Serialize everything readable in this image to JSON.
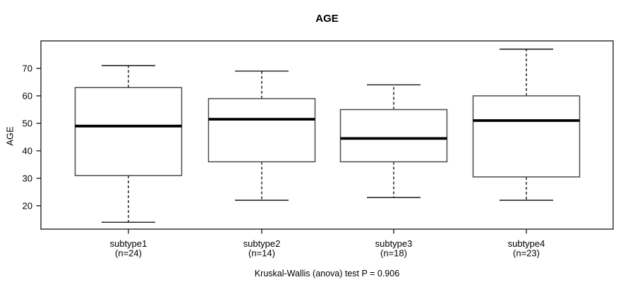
{
  "chart_data": {
    "type": "boxplot",
    "title": "AGE",
    "ylabel": "AGE",
    "xlabel": "",
    "footnote": "Kruskal-Wallis (anova) test P = 0.906",
    "yticks": [
      20,
      30,
      40,
      50,
      60,
      70
    ],
    "ylim": [
      11.5,
      80
    ],
    "grid": false,
    "legend": null,
    "groups": [
      {
        "label": "subtype1",
        "n_label": "(n=24)",
        "n": 24,
        "whisker_low": 14,
        "q1": 31,
        "median": 49,
        "q3": 63,
        "whisker_high": 71
      },
      {
        "label": "subtype2",
        "n_label": "(n=14)",
        "n": 14,
        "whisker_low": 22,
        "q1": 36,
        "median": 51.5,
        "q3": 59,
        "whisker_high": 69
      },
      {
        "label": "subtype3",
        "n_label": "(n=18)",
        "n": 18,
        "whisker_low": 23,
        "q1": 36,
        "median": 44.5,
        "q3": 55,
        "whisker_high": 64
      },
      {
        "label": "subtype4",
        "n_label": "(n=23)",
        "n": 23,
        "whisker_low": 22,
        "q1": 30.5,
        "median": 51,
        "q3": 60,
        "whisker_high": 77
      }
    ],
    "colors": {
      "background": "#ffffff",
      "box_fill": "#ffffff",
      "box_stroke": "#4a4a4a",
      "median": "#000000",
      "whisker": "#000000",
      "border": "#333333",
      "text": "#000000"
    }
  }
}
